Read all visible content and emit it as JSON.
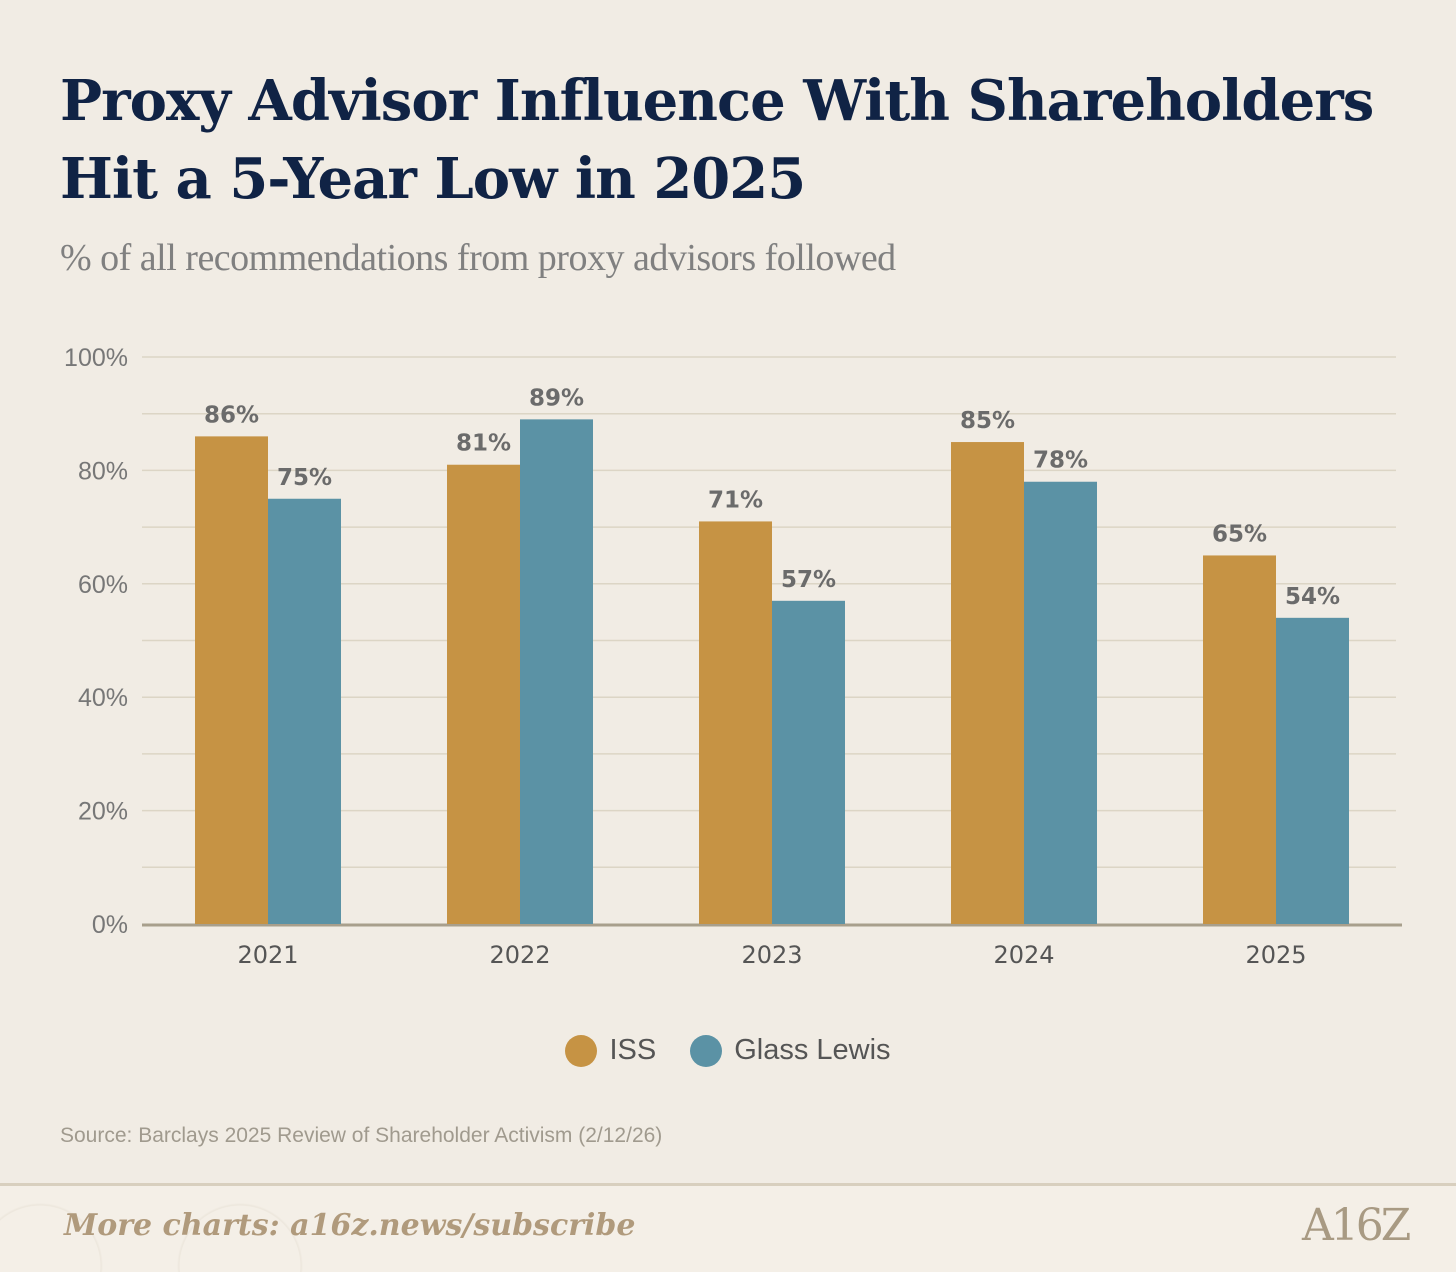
{
  "title": "Proxy Advisor Influence With Shareholders Hit a 5-Year Low in 2025",
  "subtitle": "% of all recommendations from proxy advisors followed",
  "source": "Source: Barclays 2025 Review of Shareholder Activism (2/12/26)",
  "footer": {
    "text": "More charts: a16z.news/subscribe",
    "logo": "A16Z"
  },
  "colors": {
    "iss": "#c69344",
    "glass_lewis": "#5b92a5",
    "grid": "#dcd5c5",
    "axis": "#a89f8c",
    "label": "#6b6b6b"
  },
  "chart_data": {
    "type": "bar",
    "title": "Proxy Advisor Influence With Shareholders Hit a 5-Year Low in 2025",
    "subtitle": "% of all recommendations from proxy advisors followed",
    "categories": [
      "2021",
      "2022",
      "2023",
      "2024",
      "2025"
    ],
    "series": [
      {
        "name": "ISS",
        "values": [
          86,
          81,
          71,
          85,
          65
        ],
        "labels": [
          "86%",
          "81%",
          "71%",
          "85%",
          "65%"
        ]
      },
      {
        "name": "Glass Lewis",
        "values": [
          75,
          89,
          57,
          78,
          54
        ],
        "labels": [
          "75%",
          "89%",
          "57%",
          "78%",
          "54%"
        ]
      }
    ],
    "yticks": [
      0,
      20,
      40,
      60,
      80,
      100
    ],
    "ytick_labels": [
      "0%",
      "20%",
      "40%",
      "60%",
      "80%",
      "100%"
    ],
    "ylim": [
      0,
      100
    ],
    "grid": true,
    "legend": "bottom-center",
    "xlabel": "",
    "ylabel": ""
  }
}
